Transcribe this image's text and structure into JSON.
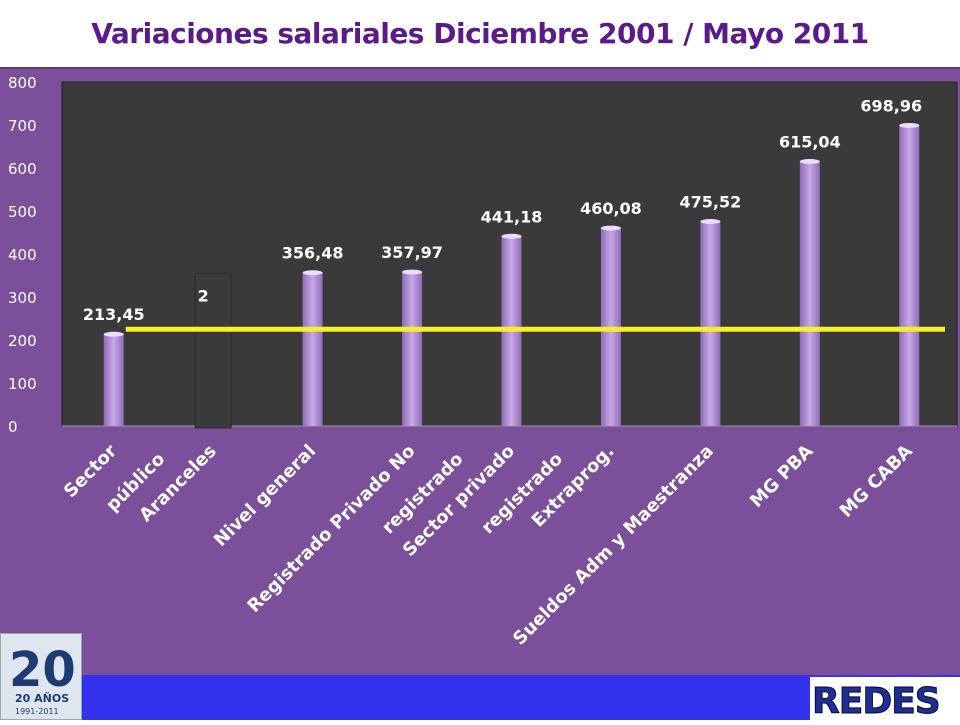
{
  "title": "Variaciones salariales Diciembre 2001 / Mayo 2011",
  "colors": {
    "title": "#5a1a8a",
    "panel": "#7b4f9a",
    "plot_bg": "#3a3a3a",
    "bar": "#c9a8e8",
    "reference_line": "#f5f02a",
    "bottom_bar": "#3333ee"
  },
  "logos": {
    "anniversary_icon": "20-anos-logo",
    "anniversary_text": "20 AÑOS",
    "anniversary_years": "1991-2011",
    "brand_icon": "redes-logo",
    "brand_text": "REDES"
  },
  "chart_data": {
    "type": "bar",
    "title": "Variaciones salariales Diciembre 2001 / Mayo 2011",
    "xlabel": "",
    "ylabel": "",
    "ylim": [
      0,
      800
    ],
    "yticks": [
      "0",
      "100",
      "200",
      "300",
      "400",
      "500",
      "600",
      "700",
      "800"
    ],
    "categories": [
      "Sector público",
      "Aranceles",
      "Nivel general",
      "Registrado Privado No registrado",
      "Sector privado registrado",
      "Extraprog.",
      "Sueldos Adm y Maestranza",
      "MG PBA",
      "MG CABA"
    ],
    "category_label_lines": [
      [
        "Sector",
        "público"
      ],
      [
        "Aranceles"
      ],
      [
        "Nivel general"
      ],
      [
        "Registrado Privado No",
        "registrado"
      ],
      [
        "Sector privado",
        "registrado"
      ],
      [
        "Extraprog."
      ],
      [
        "Sueldos Adm y Maestranza"
      ],
      [
        "MG PBA"
      ],
      [
        "MG CABA"
      ]
    ],
    "values": [
      213.45,
      null,
      356.48,
      357.97,
      441.18,
      460.08,
      475.52,
      615.04,
      698.96
    ],
    "data_labels": [
      "213,45",
      "2",
      "356,48",
      "357,97",
      "441,18",
      "460,08",
      "475,52",
      "615,04",
      "698,96"
    ],
    "reference_line": {
      "value": 225
    },
    "grid": false,
    "legend": "none"
  }
}
